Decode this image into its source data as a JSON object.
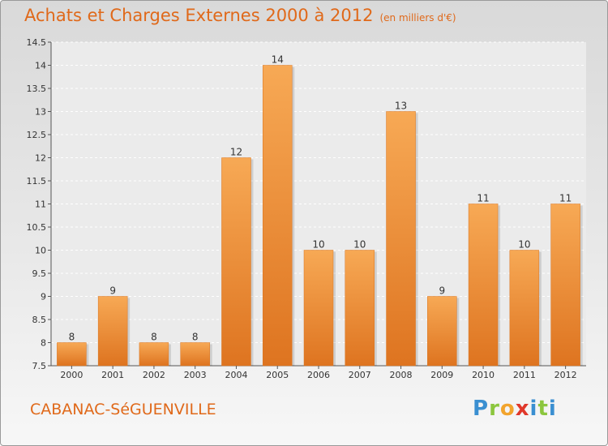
{
  "header": {
    "title": "Achats et Charges Externes 2000 à 2012",
    "unit": "(en milliers d'€)"
  },
  "footer": {
    "town": "CABANAC-SéGUENVILLE",
    "logo": {
      "p": "P",
      "r": "r",
      "o": "o",
      "x": "x",
      "i": "i",
      "t": "t",
      "i2": "i"
    }
  },
  "colors": {
    "bar": "#f39a3c",
    "title": "#e0691a"
  },
  "chart_data": {
    "type": "bar",
    "title": "Achats et Charges Externes 2000 à 2012",
    "subtitle": "(en milliers d'€)",
    "categories": [
      "2000",
      "2001",
      "2002",
      "2003",
      "2004",
      "2005",
      "2006",
      "2007",
      "2008",
      "2009",
      "2010",
      "2011",
      "2012"
    ],
    "values": [
      8,
      9,
      8,
      8,
      12,
      14,
      10,
      10,
      13,
      9,
      11,
      10,
      11
    ],
    "data_labels": [
      "8",
      "9",
      "8",
      "8",
      "12",
      "14",
      "10",
      "10",
      "13",
      "9",
      "11",
      "10",
      "11"
    ],
    "ylim": [
      7.5,
      14.5
    ],
    "yticks": [
      7.5,
      8,
      8.5,
      9,
      9.5,
      10,
      10.5,
      11,
      11.5,
      12,
      12.5,
      13,
      13.5,
      14,
      14.5
    ],
    "ytick_labels": [
      "7.5",
      "8",
      "8.5",
      "9",
      "9.5",
      "10",
      "10.5",
      "11",
      "11.5",
      "12",
      "12.5",
      "13",
      "13.5",
      "14",
      "14.5"
    ],
    "grid": true,
    "legend": "none"
  }
}
